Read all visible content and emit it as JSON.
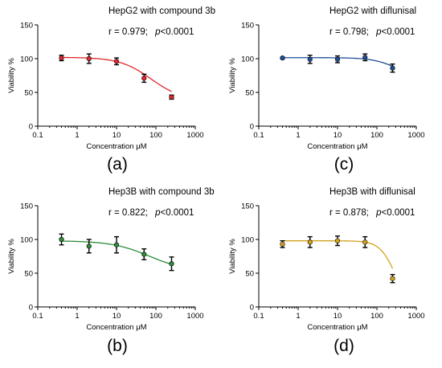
{
  "colors": {
    "red": "#e0282c",
    "blue": "#1f4e96",
    "green": "#2e8b3a",
    "gold": "#d4a11e",
    "axis": "#000000"
  },
  "chart_data": [
    {
      "type": "scatter",
      "panel_label": "(a)",
      "title": "HepG2 with compound 3b",
      "stat_r": "r = 0.979;",
      "stat_p_symbol": "p",
      "stat_p_value": "<0.0001",
      "xlabel": "Concentration  μM",
      "ylabel": "Viability %",
      "x_scale": "log",
      "xlim": [
        0.1,
        1000
      ],
      "ylim": [
        0,
        150
      ],
      "xticks": [
        "0.1",
        "1",
        "10",
        "100",
        "1000"
      ],
      "yticks": [
        "0",
        "50",
        "100",
        "150"
      ],
      "color_key": "red",
      "x": [
        0.4,
        2,
        10,
        50,
        250
      ],
      "y": [
        101,
        100,
        96,
        71,
        43
      ],
      "err": [
        4,
        7,
        5,
        6,
        3
      ],
      "fit_curve": {
        "bottom": 38,
        "top": 102,
        "ec50": 75,
        "hill": 1.1
      }
    },
    {
      "type": "scatter",
      "panel_label": "(c)",
      "title": "HepG2 with diflunisal",
      "stat_r": "r = 0.798;",
      "stat_p_symbol": "p",
      "stat_p_value": "<0.0001",
      "xlabel": "Concentration  μM",
      "ylabel": "Viability %",
      "x_scale": "log",
      "xlim": [
        0.1,
        1000
      ],
      "ylim": [
        0,
        150
      ],
      "xticks": [
        "0.1",
        "1",
        "10",
        "100",
        "1000"
      ],
      "yticks": [
        "0",
        "50",
        "100",
        "150"
      ],
      "color_key": "blue",
      "x": [
        0.4,
        2,
        10,
        50,
        250
      ],
      "y": [
        101,
        99,
        99,
        102,
        86
      ],
      "err": [
        1,
        6,
        5,
        5,
        6
      ],
      "fit_curve": {
        "bottom": 70,
        "top": 101.5,
        "ec50": 330,
        "hill": 1.4
      }
    },
    {
      "type": "scatter",
      "panel_label": "(b)",
      "title": "Hep3B with compound 3b",
      "stat_r": "r = 0.822;",
      "stat_p_symbol": "p",
      "stat_p_value": "<0.0001",
      "xlabel": "Concentration  μM",
      "ylabel": "Viability %",
      "x_scale": "log",
      "xlim": [
        0.1,
        1000
      ],
      "ylim": [
        0,
        150
      ],
      "xticks": [
        "0.1",
        "1",
        "10",
        "100",
        "1000"
      ],
      "yticks": [
        "0",
        "50",
        "100",
        "150"
      ],
      "color_key": "green",
      "x": [
        0.4,
        2,
        10,
        50,
        250
      ],
      "y": [
        100,
        90,
        92,
        78,
        64
      ],
      "err": [
        8,
        10,
        12,
        8,
        10
      ],
      "fit_curve": {
        "bottom": 52,
        "top": 98,
        "ec50": 70,
        "hill": 0.9
      }
    },
    {
      "type": "scatter",
      "panel_label": "(d)",
      "title": "Hep3B with diflunisal",
      "stat_r": "r = 0.878;",
      "stat_p_symbol": "p",
      "stat_p_value": "<0.0001",
      "xlabel": "Concentration  μM",
      "ylabel": "Viability %",
      "x_scale": "log",
      "xlim": [
        0.1,
        1000
      ],
      "ylim": [
        0,
        150
      ],
      "xticks": [
        "0.1",
        "1",
        "10",
        "100",
        "1000"
      ],
      "yticks": [
        "0",
        "50",
        "100",
        "150"
      ],
      "color_key": "gold",
      "x": [
        0.4,
        2,
        10,
        50,
        250
      ],
      "y": [
        93,
        96,
        98,
        96,
        42
      ],
      "err": [
        5,
        8,
        7,
        8,
        6
      ],
      "fit_curve": {
        "bottom": 0,
        "top": 98,
        "ec50": 290,
        "hill": 2.2
      }
    }
  ]
}
